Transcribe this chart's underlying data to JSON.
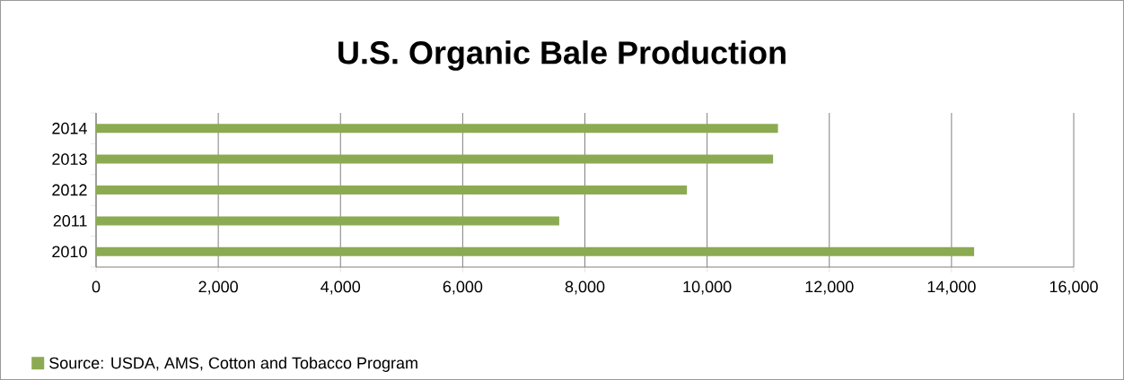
{
  "chart_data": {
    "type": "bar",
    "orientation": "horizontal",
    "title": "U.S. Organic Bale Production",
    "categories": [
      "2014",
      "2013",
      "2012",
      "2011",
      "2010"
    ],
    "series": [
      {
        "name": "Source:  USDA, AMS, Cotton and Tobacco Program",
        "color": "#8caa52",
        "values": [
          11160,
          11080,
          9670,
          7580,
          14370
        ]
      }
    ],
    "xlim": [
      0,
      16000
    ],
    "xticks": [
      0,
      {
        "value": 2000,
        "label": "2,000"
      },
      {
        "value": 4000,
        "label": "4,000"
      },
      {
        "value": 6000,
        "label": "6,000"
      },
      {
        "value": 8000,
        "label": "8,000"
      },
      {
        "value": 10000,
        "label": "10,000"
      },
      {
        "value": 12000,
        "label": "12,000"
      },
      {
        "value": 14000,
        "label": "14,000"
      },
      {
        "value": 16000,
        "label": "16,000"
      }
    ],
    "grid": "x",
    "legend": "bottom left"
  }
}
